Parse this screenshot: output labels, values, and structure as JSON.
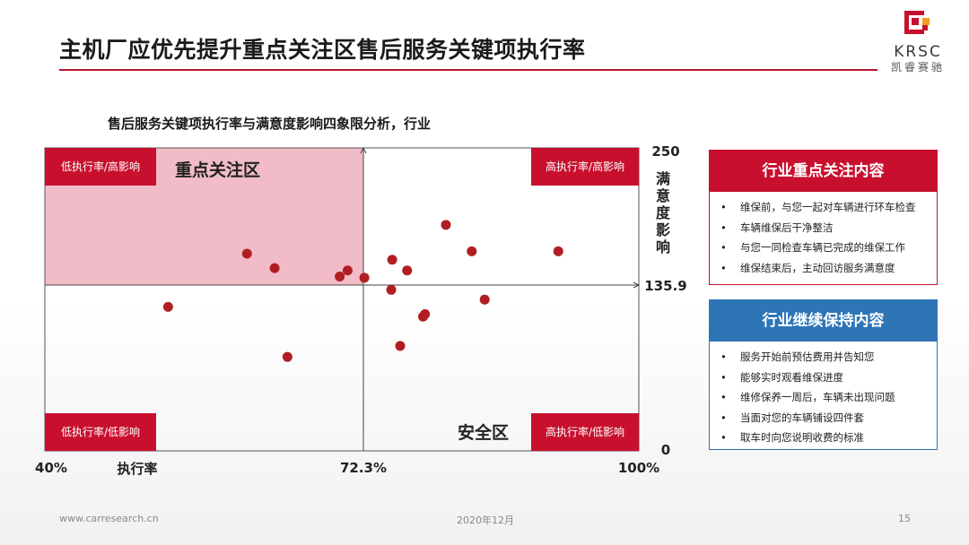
{
  "header": {
    "title": "主机厂应优先提升重点关注区售后服务关键项执行率",
    "accent_color": "#b5162b"
  },
  "logo": {
    "text": "KRSC",
    "subtext": "凯睿赛驰"
  },
  "chart_data": {
    "type": "scatter",
    "title": "售后服务关键项执行率与满意度影响四象限分析，行业",
    "xlabel": "执行率",
    "ylabel": "满意度影响",
    "xlim": [
      40,
      100
    ],
    "ylim": [
      0,
      250
    ],
    "x_tick_labels": [
      "40%",
      "72.3%",
      "100%"
    ],
    "y_tick_labels": [
      "250",
      "135.9",
      "0"
    ],
    "divider_x": 72.3,
    "divider_y": 135.9,
    "grid": false,
    "point_color": "#b01e23",
    "highlight_color": "#eeb0bd",
    "quadrant_labels": {
      "top_left": "低执行率/高影响",
      "top_right": "高执行率/高影响",
      "bottom_left": "低执行率/低影响",
      "bottom_right": "高执行率/低影响"
    },
    "zone_labels": {
      "focus": "重点关注区",
      "safe": "安全区"
    },
    "points": [
      {
        "x": 52.5,
        "y": 118
      },
      {
        "x": 60.5,
        "y": 162
      },
      {
        "x": 63.3,
        "y": 150
      },
      {
        "x": 64.6,
        "y": 77
      },
      {
        "x": 70.7,
        "y": 148
      },
      {
        "x": 69.9,
        "y": 143
      },
      {
        "x": 72.4,
        "y": 142
      },
      {
        "x": 75.2,
        "y": 157
      },
      {
        "x": 75.1,
        "y": 132
      },
      {
        "x": 76.7,
        "y": 148
      },
      {
        "x": 78.3,
        "y": 110
      },
      {
        "x": 78.5,
        "y": 112
      },
      {
        "x": 76.0,
        "y": 86
      },
      {
        "x": 80.6,
        "y": 186
      },
      {
        "x": 83.2,
        "y": 164
      },
      {
        "x": 84.5,
        "y": 124
      },
      {
        "x": 91.9,
        "y": 164
      }
    ]
  },
  "panels": {
    "focus": {
      "title": "行业重点关注内容",
      "color": "#c8102e",
      "bullet": "•",
      "items": [
        "维保前，与您一起对车辆进行环车检查",
        "车辆维保后干净整洁",
        "与您一同检查车辆已完成的维保工作",
        "维保结束后，主动回访服务满意度"
      ]
    },
    "maintain": {
      "title": "行业继续保持内容",
      "color": "#2e75b6",
      "bullet": "•",
      "items": [
        "服务开始前预估费用并告知您",
        "能够实时观看维保进度",
        "维修保养一周后，车辆未出现问题",
        "当面对您的车辆铺设四件套",
        "取车时向您说明收费的标准"
      ]
    }
  },
  "footer": {
    "url": "www.carresearch.cn",
    "date": "2020年12月",
    "page": "15"
  }
}
